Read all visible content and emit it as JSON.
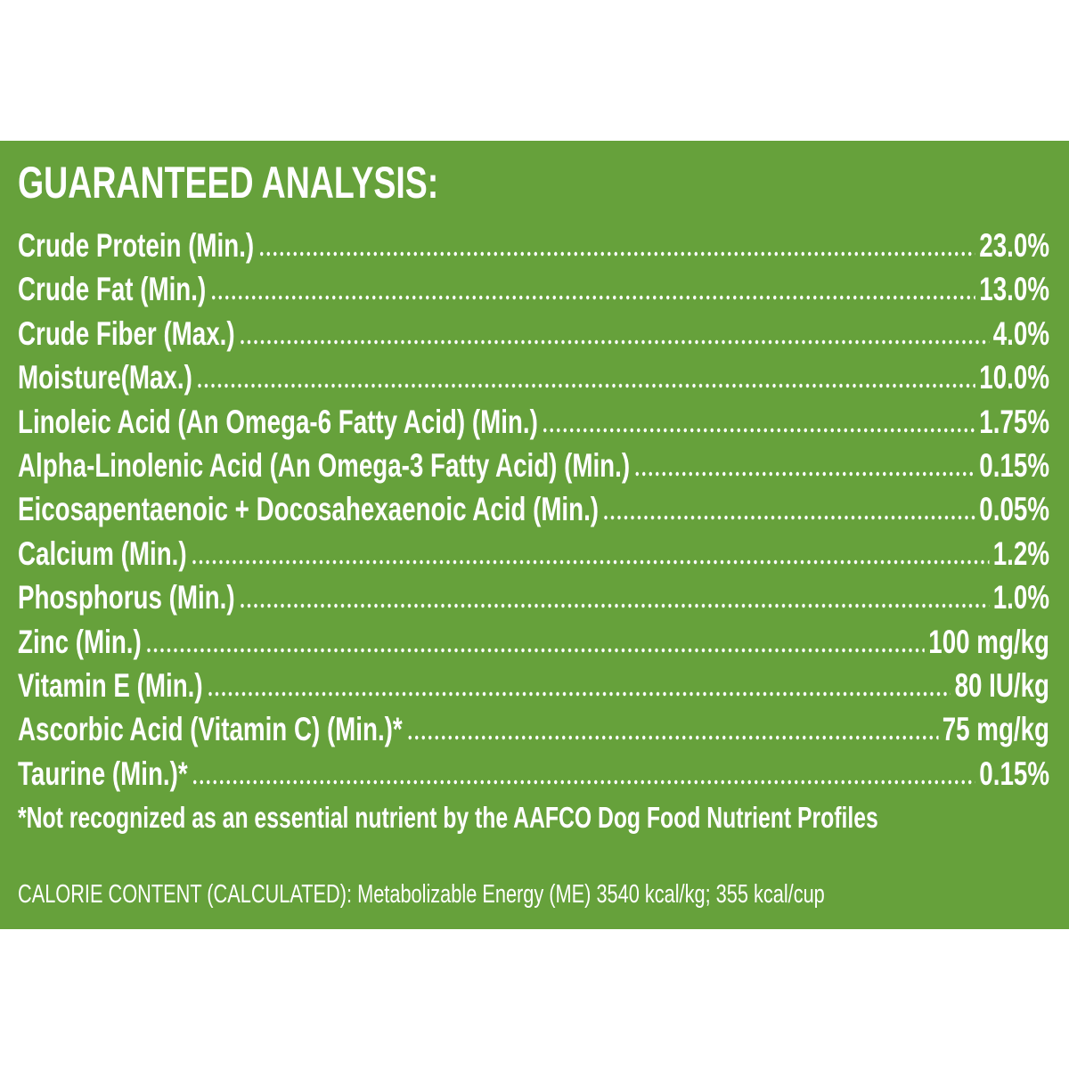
{
  "title": "GUARANTEED ANALYSIS:",
  "rows": [
    {
      "name": "Crude Protein (Min.)",
      "value": "23.0%"
    },
    {
      "name": "Crude Fat (Min.)",
      "value": "13.0%"
    },
    {
      "name": "Crude Fiber (Max.)",
      "value": "4.0%"
    },
    {
      "name": "Moisture(Max.)",
      "value": "10.0%"
    },
    {
      "name": "Linoleic Acid (An Omega-6 Fatty Acid) (Min.)",
      "value": "1.75%"
    },
    {
      "name": "Alpha-Linolenic Acid (An Omega-3 Fatty Acid) (Min.)",
      "value": "0.15%"
    },
    {
      "name": "Eicosapentaenoic + Docosahexaenoic Acid (Min.)",
      "value": "0.05%"
    },
    {
      "name": "Calcium (Min.)",
      "value": "1.2%"
    },
    {
      "name": "Phosphorus (Min.)",
      "value": "1.0%"
    },
    {
      "name": "Zinc (Min.)",
      "value": "100 mg/kg"
    },
    {
      "name": "Vitamin E (Min.)",
      "value": "80 IU/kg"
    },
    {
      "name": "Ascorbic Acid (Vitamin C) (Min.)*",
      "value": "75 mg/kg"
    },
    {
      "name": "Taurine (Min.)*",
      "value": "0.15%"
    }
  ],
  "footnote": "*Not recognized as an essential nutrient by the AAFCO Dog Food Nutrient Profiles",
  "calorie_label": "CALORIE CONTENT (CALCULATED):",
  "calorie_text": "Metabolizable Energy (ME) 3540 kcal/kg; 355 kcal/cup"
}
